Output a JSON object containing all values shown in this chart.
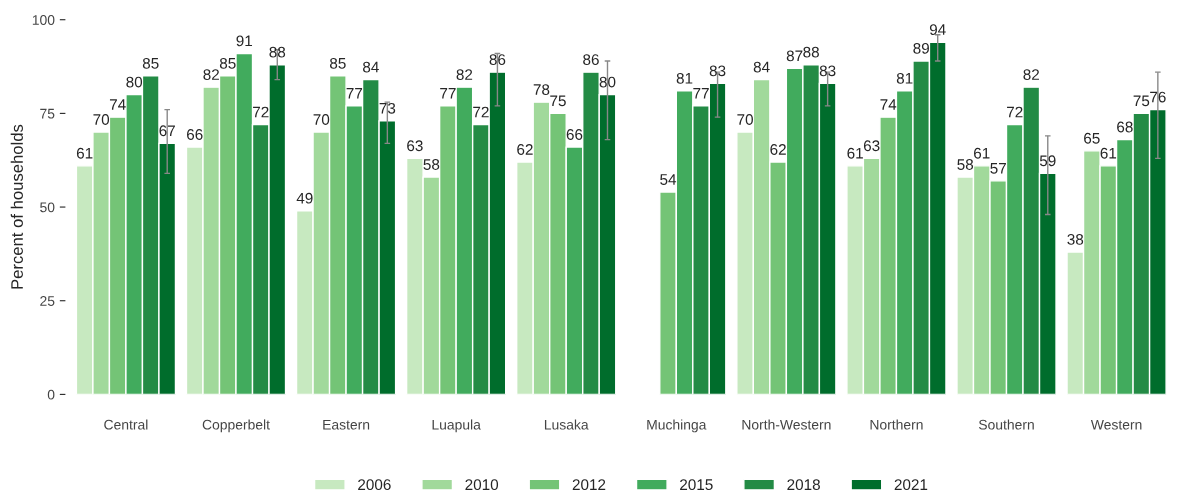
{
  "chart_data": {
    "type": "bar",
    "ylabel": "Percent of households",
    "categories": [
      "Central",
      "Copperbelt",
      "Eastern",
      "Luapula",
      "Lusaka",
      "Muchinga",
      "North-Western",
      "Northern",
      "Southern",
      "Western"
    ],
    "series": [
      {
        "name": "2006",
        "color": "#c7e9c0",
        "values": [
          61,
          66,
          49,
          63,
          62,
          null,
          70,
          61,
          58,
          38
        ]
      },
      {
        "name": "2010",
        "color": "#a1d99b",
        "values": [
          70,
          82,
          70,
          58,
          78,
          null,
          84,
          63,
          61,
          65
        ]
      },
      {
        "name": "2012",
        "color": "#74c476",
        "values": [
          74,
          85,
          85,
          77,
          75,
          54,
          62,
          74,
          57,
          61
        ]
      },
      {
        "name": "2015",
        "color": "#41ab5d",
        "values": [
          80,
          91,
          77,
          82,
          66,
          81,
          87,
          81,
          72,
          68
        ]
      },
      {
        "name": "2018",
        "color": "#238b45",
        "values": [
          85,
          72,
          84,
          72,
          86,
          77,
          88,
          89,
          82,
          75
        ]
      },
      {
        "name": "2021",
        "color": "#006d2c",
        "values": [
          67,
          88,
          73,
          86,
          80,
          83,
          83,
          94,
          59,
          76
        ],
        "errors": [
          [
            59,
            76
          ],
          [
            84,
            92
          ],
          [
            67,
            78
          ],
          [
            77,
            91
          ],
          [
            68,
            89
          ],
          [
            74,
            86
          ],
          [
            77,
            86
          ],
          [
            89,
            96
          ],
          [
            48,
            69
          ],
          [
            63,
            86
          ]
        ]
      }
    ],
    "ylim": [
      0,
      100
    ],
    "yticks": [
      0,
      25,
      50,
      75,
      100
    ],
    "data_labels": true,
    "grid": false,
    "legend": "bottom"
  }
}
